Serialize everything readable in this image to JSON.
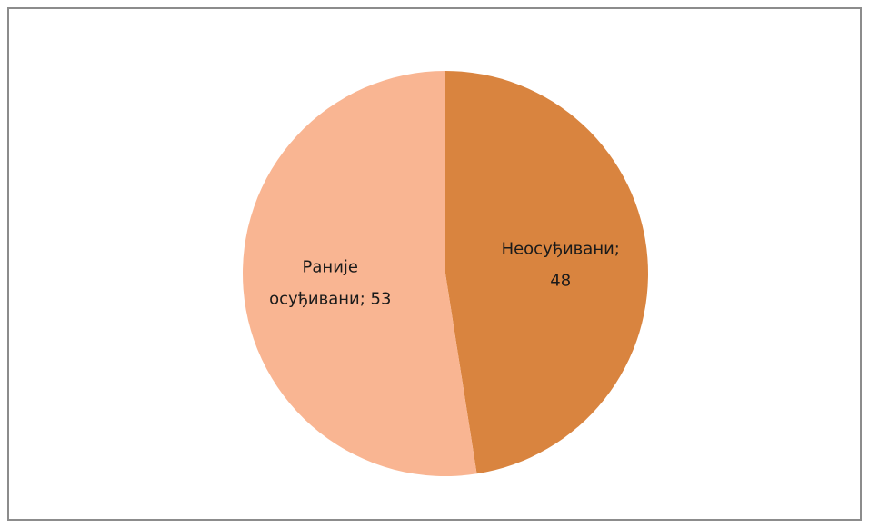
{
  "chart_data": {
    "type": "pie",
    "categories": [
      "Неосуђивани",
      "Раније осуђивани"
    ],
    "values": [
      48,
      53
    ],
    "value_labels": [
      "Неосуђивани;\n48",
      "Раније\nосуђивани; 53"
    ],
    "colors": [
      "#d9843f",
      "#f9b592"
    ]
  }
}
